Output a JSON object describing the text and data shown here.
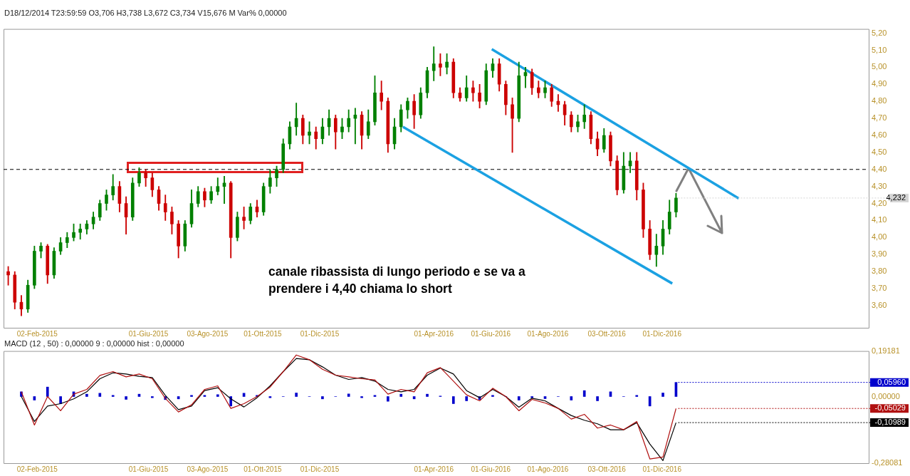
{
  "chart_data": [
    {
      "type": "candlestick",
      "subtitle": "D18/12/2014 T23:59:59 O3,706 H3,738 L3,672 C3,734 V15,676 M Var% 0,00000",
      "x": [
        "2015-01-02",
        "2015-01-09",
        "2015-01-16",
        "2015-01-23",
        "2015-01-30",
        "2015-02-06",
        "2015-02-13",
        "2015-02-20",
        "2015-02-27",
        "2015-03-06",
        "2015-03-13",
        "2015-03-20",
        "2015-03-27",
        "2015-04-03",
        "2015-04-10",
        "2015-04-17",
        "2015-04-24",
        "2015-05-01",
        "2015-05-08",
        "2015-05-15",
        "2015-05-22",
        "2015-05-29",
        "2015-06-05",
        "2015-06-12",
        "2015-06-19",
        "2015-06-26",
        "2015-07-03",
        "2015-07-10",
        "2015-07-17",
        "2015-07-24",
        "2015-07-31",
        "2015-08-07",
        "2015-08-14",
        "2015-08-21",
        "2015-08-28",
        "2015-09-04",
        "2015-09-11",
        "2015-09-18",
        "2015-09-25",
        "2015-10-02",
        "2015-10-09",
        "2015-10-16",
        "2015-10-23",
        "2015-10-30",
        "2015-11-06",
        "2015-11-13",
        "2015-11-20",
        "2015-11-27",
        "2015-12-04",
        "2015-12-11",
        "2015-12-18",
        "2015-12-25",
        "2016-01-01",
        "2016-01-08",
        "2016-01-15",
        "2016-01-22",
        "2016-01-29",
        "2016-02-05",
        "2016-02-12",
        "2016-02-19",
        "2016-02-26",
        "2016-03-04",
        "2016-03-11",
        "2016-03-18",
        "2016-03-25",
        "2016-04-01",
        "2016-04-08",
        "2016-04-15",
        "2016-04-22",
        "2016-04-29",
        "2016-05-06",
        "2016-05-13",
        "2016-05-20",
        "2016-05-27",
        "2016-06-03",
        "2016-06-10",
        "2016-06-17",
        "2016-06-24",
        "2016-07-01",
        "2016-07-08",
        "2016-07-15",
        "2016-07-22",
        "2016-07-29",
        "2016-08-05",
        "2016-08-12",
        "2016-08-19",
        "2016-08-26",
        "2016-09-02",
        "2016-09-09",
        "2016-09-16",
        "2016-09-23",
        "2016-09-30",
        "2016-10-07",
        "2016-10-14",
        "2016-10-21",
        "2016-10-28",
        "2016-11-04",
        "2016-11-11",
        "2016-11-18",
        "2016-11-25",
        "2016-12-02",
        "2016-12-09",
        "2016-12-16"
      ],
      "ohlc": [
        [
          3.8,
          3.83,
          3.72,
          3.78
        ],
        [
          3.78,
          3.8,
          3.58,
          3.62
        ],
        [
          3.62,
          3.66,
          3.54,
          3.58
        ],
        [
          3.58,
          3.75,
          3.56,
          3.72
        ],
        [
          3.72,
          3.95,
          3.7,
          3.92
        ],
        [
          3.92,
          3.97,
          3.88,
          3.95
        ],
        [
          3.95,
          3.96,
          3.73,
          3.78
        ],
        [
          3.78,
          3.94,
          3.76,
          3.92
        ],
        [
          3.92,
          4.0,
          3.9,
          3.97
        ],
        [
          3.97,
          4.03,
          3.94,
          4.0
        ],
        [
          4.0,
          4.08,
          3.98,
          4.03
        ],
        [
          4.03,
          4.08,
          3.99,
          4.05
        ],
        [
          4.05,
          4.1,
          4.02,
          4.08
        ],
        [
          4.08,
          4.15,
          4.05,
          4.12
        ],
        [
          4.12,
          4.22,
          4.1,
          4.2
        ],
        [
          4.2,
          4.28,
          4.16,
          4.25
        ],
        [
          4.25,
          4.37,
          4.22,
          4.3
        ],
        [
          4.3,
          4.33,
          4.15,
          4.2
        ],
        [
          4.2,
          4.24,
          4.02,
          4.12
        ],
        [
          4.12,
          4.35,
          4.1,
          4.32
        ],
        [
          4.32,
          4.41,
          4.3,
          4.38
        ],
        [
          4.38,
          4.4,
          4.3,
          4.35
        ],
        [
          4.35,
          4.38,
          4.24,
          4.28
        ],
        [
          4.28,
          4.3,
          4.16,
          4.2
        ],
        [
          4.2,
          4.25,
          4.1,
          4.15
        ],
        [
          4.15,
          4.18,
          4.02,
          4.08
        ],
        [
          4.08,
          4.1,
          3.88,
          3.95
        ],
        [
          3.95,
          4.1,
          3.92,
          4.08
        ],
        [
          4.08,
          4.28,
          4.06,
          4.2
        ],
        [
          4.2,
          4.3,
          4.18,
          4.27
        ],
        [
          4.27,
          4.29,
          4.18,
          4.22
        ],
        [
          4.22,
          4.3,
          4.2,
          4.27
        ],
        [
          4.27,
          4.35,
          4.25,
          4.3
        ],
        [
          4.3,
          4.36,
          4.2,
          4.32
        ],
        [
          4.32,
          4.33,
          3.88,
          4.0
        ],
        [
          4.0,
          4.15,
          3.98,
          4.12
        ],
        [
          4.12,
          4.18,
          4.05,
          4.1
        ],
        [
          4.1,
          4.2,
          4.08,
          4.18
        ],
        [
          4.18,
          4.22,
          4.12,
          4.15
        ],
        [
          4.15,
          4.32,
          4.13,
          4.3
        ],
        [
          4.3,
          4.4,
          4.26,
          4.35
        ],
        [
          4.35,
          4.42,
          4.3,
          4.4
        ],
        [
          4.4,
          4.58,
          4.38,
          4.55
        ],
        [
          4.55,
          4.68,
          4.52,
          4.65
        ],
        [
          4.65,
          4.79,
          4.6,
          4.7
        ],
        [
          4.7,
          4.72,
          4.55,
          4.6
        ],
        [
          4.6,
          4.68,
          4.55,
          4.62
        ],
        [
          4.62,
          4.65,
          4.52,
          4.58
        ],
        [
          4.58,
          4.7,
          4.55,
          4.65
        ],
        [
          4.65,
          4.75,
          4.6,
          4.7
        ],
        [
          4.7,
          4.72,
          4.52,
          4.62
        ],
        [
          4.62,
          4.7,
          4.58,
          4.65
        ],
        [
          4.65,
          4.75,
          4.62,
          4.7
        ],
        [
          4.7,
          4.76,
          4.55,
          4.72
        ],
        [
          4.72,
          4.74,
          4.52,
          4.6
        ],
        [
          4.6,
          4.75,
          4.58,
          4.68
        ],
        [
          4.68,
          4.95,
          4.66,
          4.85
        ],
        [
          4.85,
          4.92,
          4.75,
          4.8
        ],
        [
          4.8,
          4.82,
          4.5,
          4.55
        ],
        [
          4.55,
          4.7,
          4.52,
          4.65
        ],
        [
          4.65,
          4.78,
          4.62,
          4.75
        ],
        [
          4.75,
          4.82,
          4.7,
          4.8
        ],
        [
          4.8,
          4.84,
          4.64,
          4.72
        ],
        [
          4.72,
          4.88,
          4.7,
          4.85
        ],
        [
          4.85,
          5.0,
          4.82,
          4.98
        ],
        [
          4.98,
          5.12,
          4.92,
          5.02
        ],
        [
          5.02,
          5.08,
          4.95,
          5.0
        ],
        [
          5.0,
          5.08,
          4.96,
          5.03
        ],
        [
          5.03,
          5.05,
          4.82,
          4.85
        ],
        [
          4.85,
          4.88,
          4.8,
          4.82
        ],
        [
          4.82,
          4.95,
          4.8,
          4.88
        ],
        [
          4.88,
          4.92,
          4.8,
          4.85
        ],
        [
          4.85,
          4.9,
          4.76,
          4.8
        ],
        [
          4.8,
          5.02,
          4.78,
          4.98
        ],
        [
          4.98,
          5.05,
          4.94,
          5.02
        ],
        [
          5.02,
          5.05,
          4.86,
          4.9
        ],
        [
          4.9,
          4.92,
          4.72,
          4.78
        ],
        [
          4.78,
          4.82,
          4.5,
          4.7
        ],
        [
          4.7,
          5.03,
          4.68,
          4.95
        ],
        [
          4.95,
          5.0,
          4.88,
          4.97
        ],
        [
          4.97,
          4.99,
          4.84,
          4.88
        ],
        [
          4.88,
          4.92,
          4.82,
          4.85
        ],
        [
          4.85,
          4.92,
          4.82,
          4.88
        ],
        [
          4.88,
          4.9,
          4.77,
          4.8
        ],
        [
          4.8,
          4.84,
          4.74,
          4.78
        ],
        [
          4.78,
          4.8,
          4.66,
          4.72
        ],
        [
          4.72,
          4.74,
          4.62,
          4.65
        ],
        [
          4.65,
          4.72,
          4.62,
          4.68
        ],
        [
          4.68,
          4.78,
          4.64,
          4.72
        ],
        [
          4.72,
          4.74,
          4.55,
          4.58
        ],
        [
          4.58,
          4.62,
          4.48,
          4.52
        ],
        [
          4.52,
          4.64,
          4.5,
          4.6
        ],
        [
          4.6,
          4.62,
          4.42,
          4.45
        ],
        [
          4.45,
          4.48,
          4.25,
          4.28
        ],
        [
          4.28,
          4.5,
          4.26,
          4.42
        ],
        [
          4.42,
          4.5,
          4.38,
          4.45
        ],
        [
          4.45,
          4.5,
          4.22,
          4.28
        ],
        [
          4.28,
          4.32,
          4.0,
          4.05
        ],
        [
          4.05,
          4.1,
          3.87,
          3.9
        ],
        [
          3.9,
          4.02,
          3.83,
          3.95
        ],
        [
          3.95,
          4.1,
          3.9,
          4.05
        ],
        [
          4.05,
          4.22,
          4.02,
          4.15
        ],
        [
          4.15,
          4.26,
          4.12,
          4.232
        ]
      ],
      "colors": [
        "#cc0000",
        "#cc0000",
        "#cc0000",
        "#008000",
        "#008000",
        "#008000",
        "#cc0000",
        "#008000",
        "#008000",
        "#008000",
        "#008000",
        "#008000",
        "#008000",
        "#008000",
        "#008000",
        "#008000",
        "#008000",
        "#cc0000",
        "#cc0000",
        "#008000",
        "#008000",
        "#cc0000",
        "#cc0000",
        "#cc0000",
        "#cc0000",
        "#cc0000",
        "#cc0000",
        "#008000",
        "#008000",
        "#008000",
        "#cc0000",
        "#008000",
        "#008000",
        "#008000",
        "#cc0000",
        "#008000",
        "#cc0000",
        "#008000",
        "#cc0000",
        "#008000",
        "#008000",
        "#008000",
        "#008000",
        "#008000",
        "#008000",
        "#cc0000",
        "#008000",
        "#cc0000",
        "#008000",
        "#008000",
        "#cc0000",
        "#008000",
        "#008000",
        "#008000",
        "#cc0000",
        "#008000",
        "#008000",
        "#cc0000",
        "#cc0000",
        "#008000",
        "#008000",
        "#008000",
        "#cc0000",
        "#008000",
        "#008000",
        "#008000",
        "#cc0000",
        "#008000",
        "#cc0000",
        "#cc0000",
        "#008000",
        "#cc0000",
        "#cc0000",
        "#008000",
        "#008000",
        "#cc0000",
        "#cc0000",
        "#cc0000",
        "#008000",
        "#008000",
        "#cc0000",
        "#cc0000",
        "#008000",
        "#cc0000",
        "#cc0000",
        "#cc0000",
        "#cc0000",
        "#008000",
        "#008000",
        "#cc0000",
        "#cc0000",
        "#008000",
        "#cc0000",
        "#cc0000",
        "#008000",
        "#008000",
        "#cc0000",
        "#cc0000",
        "#cc0000",
        "#008000",
        "#008000",
        "#008000",
        "#008000"
      ],
      "series": [
        {
          "type": "line",
          "color": "#1ba1e2",
          "x": [
            "2016-06-02",
            "2017-02-21"
          ],
          "values": [
            5.106,
            4.23
          ]
        },
        {
          "type": "line",
          "color": "#1ba1e2",
          "x": [
            "2016-02-28",
            "2016-12-12"
          ],
          "values": [
            4.65,
            3.73
          ]
        }
      ],
      "xlim": [
        "2014-12-28",
        "2017-07-10"
      ],
      "xticks": [
        {
          "value": "2015-02-02",
          "label": "02-Feb-2015"
        },
        {
          "value": "2015-06-01",
          "label": "01-Giu-2015"
        },
        {
          "value": "2015-08-03",
          "label": "03-Ago-2015"
        },
        {
          "value": "2015-10-01",
          "label": "01-Ott-2015"
        },
        {
          "value": "2015-12-01",
          "label": "01-Dic-2015"
        },
        {
          "value": "2016-04-01",
          "label": "01-Apr-2016"
        },
        {
          "value": "2016-06-01",
          "label": "01-Giu-2016"
        },
        {
          "value": "2016-08-01",
          "label": "01-Ago-2016"
        },
        {
          "value": "2016-10-03",
          "label": "03-Ott-2016"
        },
        {
          "value": "2016-12-01",
          "label": "01-Dic-2016"
        }
      ],
      "ylim": [
        3.47,
        5.225
      ],
      "yticks": [
        {
          "value": 3.6,
          "label": "3,60"
        },
        {
          "value": 3.7,
          "label": "3,70"
        },
        {
          "value": 3.8,
          "label": "3,80"
        },
        {
          "value": 3.9,
          "label": "3,90"
        },
        {
          "value": 4.0,
          "label": "4,00"
        },
        {
          "value": 4.1,
          "label": "4,10"
        },
        {
          "value": 4.2,
          "label": "4,20"
        },
        {
          "value": 4.3,
          "label": "4,30"
        },
        {
          "value": 4.4,
          "label": "4,40"
        },
        {
          "value": 4.5,
          "label": "4,50"
        },
        {
          "value": 4.6,
          "label": "4,60"
        },
        {
          "value": 4.7,
          "label": "4,70"
        },
        {
          "value": 4.8,
          "label": "4,80"
        },
        {
          "value": 4.9,
          "label": "4,90"
        },
        {
          "value": 5.0,
          "label": "5,00"
        },
        {
          "value": 5.1,
          "label": "5,10"
        },
        {
          "value": 5.2,
          "label": "5,20"
        }
      ],
      "ref_lines": [
        {
          "axis": "y",
          "value": 4.4,
          "line_style": "dashed",
          "color": "#000000"
        }
      ],
      "annotations": [
        "canale ribassista di lungo periodo e se va a prendere i 4,40 chiama lo short",
        {
          "text": "4,232",
          "x": "2016-12-16",
          "y": 4.232
        }
      ]
    },
    {
      "type": "line",
      "title": "MACD (12 , 50) : 0,00000 9 : 0,00000 hist : 0,00000",
      "x": [
        "2015-01-16",
        "2015-01-30",
        "2015-02-13",
        "2015-02-27",
        "2015-03-13",
        "2015-03-27",
        "2015-04-10",
        "2015-04-24",
        "2015-05-08",
        "2015-05-22",
        "2015-06-05",
        "2015-06-19",
        "2015-07-03",
        "2015-07-17",
        "2015-07-31",
        "2015-08-14",
        "2015-08-28",
        "2015-09-11",
        "2015-09-25",
        "2015-10-09",
        "2015-10-23",
        "2015-11-06",
        "2015-11-20",
        "2015-12-04",
        "2015-12-18",
        "2016-01-01",
        "2016-01-15",
        "2016-01-29",
        "2016-02-12",
        "2016-02-26",
        "2016-03-11",
        "2016-03-25",
        "2016-04-08",
        "2016-04-22",
        "2016-05-06",
        "2016-05-20",
        "2016-06-03",
        "2016-06-17",
        "2016-07-01",
        "2016-07-15",
        "2016-07-29",
        "2016-08-12",
        "2016-08-26",
        "2016-09-09",
        "2016-09-23",
        "2016-10-07",
        "2016-10-21",
        "2016-11-04",
        "2016-11-18",
        "2016-12-02",
        "2016-12-16"
      ],
      "series": [
        {
          "type": "bar",
          "color": "#0000cc",
          "values": [
            0.02,
            -0.015,
            0.04,
            -0.03,
            0.02,
            0.01,
            0.014,
            0.005,
            -0.012,
            0.01,
            -0.005,
            -0.013,
            -0.01,
            0.005,
            0.005,
            0.008,
            -0.04,
            0.014,
            0.005,
            -0.005,
            0.0,
            0.015,
            0.0,
            -0.01,
            0.0,
            0.011,
            -0.005,
            0.005,
            -0.02,
            0.01,
            -0.01,
            0.01,
            0.002,
            -0.03,
            -0.018,
            -0.013,
            0.005,
            0.0,
            -0.015,
            -0.005,
            -0.009,
            0.0,
            -0.015,
            0.025,
            -0.018,
            0.02,
            0.0,
            0.005,
            -0.04,
            0.015,
            0.0596
          ]
        },
        {
          "type": "line",
          "color": "#b01010",
          "values": [
            0.02,
            -0.12,
            0.0,
            -0.06,
            0.01,
            0.03,
            0.089,
            0.105,
            0.083,
            0.095,
            0.075,
            -0.008,
            -0.065,
            -0.035,
            0.03,
            0.045,
            -0.05,
            -0.03,
            0.0,
            0.04,
            0.105,
            0.175,
            0.155,
            0.115,
            0.09,
            0.083,
            0.075,
            0.07,
            0.01,
            0.03,
            0.02,
            0.1,
            0.122,
            0.065,
            0.007,
            -0.018,
            0.035,
            0.0,
            -0.06,
            -0.012,
            -0.027,
            -0.05,
            -0.095,
            -0.075,
            -0.133,
            -0.12,
            -0.14,
            -0.105,
            -0.263,
            -0.255,
            -0.05029
          ]
        },
        {
          "type": "line",
          "color": "#000000",
          "values": [
            0.0,
            -0.105,
            -0.04,
            -0.03,
            -0.01,
            0.02,
            0.075,
            0.1,
            0.095,
            0.085,
            0.08,
            0.005,
            -0.055,
            -0.04,
            0.025,
            0.037,
            -0.01,
            -0.044,
            -0.005,
            0.045,
            0.105,
            0.16,
            0.155,
            0.125,
            0.09,
            0.072,
            0.08,
            0.065,
            0.03,
            0.02,
            0.03,
            0.09,
            0.12,
            0.095,
            0.025,
            -0.005,
            0.03,
            0.0,
            -0.045,
            -0.007,
            -0.018,
            -0.05,
            -0.08,
            -0.1,
            -0.115,
            -0.14,
            -0.14,
            -0.11,
            -0.2,
            -0.27,
            -0.10989
          ]
        }
      ],
      "xlim": [
        "2014-12-28",
        "2017-07-10"
      ],
      "xticks": [
        {
          "value": "2015-02-02",
          "label": "02-Feb-2015"
        },
        {
          "value": "2015-06-01",
          "label": "01-Giu-2015"
        },
        {
          "value": "2015-08-03",
          "label": "03-Ago-2015"
        },
        {
          "value": "2015-10-01",
          "label": "01-Ott-2015"
        },
        {
          "value": "2015-12-01",
          "label": "01-Dic-2015"
        },
        {
          "value": "2016-04-01",
          "label": "01-Apr-2016"
        },
        {
          "value": "2016-06-01",
          "label": "01-Giu-2016"
        },
        {
          "value": "2016-08-01",
          "label": "01-Ago-2016"
        },
        {
          "value": "2016-10-03",
          "label": "03-Ott-2016"
        },
        {
          "value": "2016-12-01",
          "label": "01-Dic-2016"
        }
      ],
      "ylim": [
        -0.28081,
        0.19181
      ],
      "yticks": [
        {
          "value": -0.28081,
          "label": "-0,28081"
        },
        {
          "value": 0,
          "label": "0,00000"
        },
        {
          "value": 0.19181,
          "label": "0,19181"
        }
      ],
      "annotations": [
        {
          "text": "0,05960",
          "x": "2016-12-16",
          "y": 0.0596
        },
        {
          "text": "-0,05029",
          "x": "2016-12-16",
          "y": -0.05029
        },
        {
          "text": "-0,10989",
          "x": "2016-12-16",
          "y": -0.10989
        }
      ]
    }
  ]
}
